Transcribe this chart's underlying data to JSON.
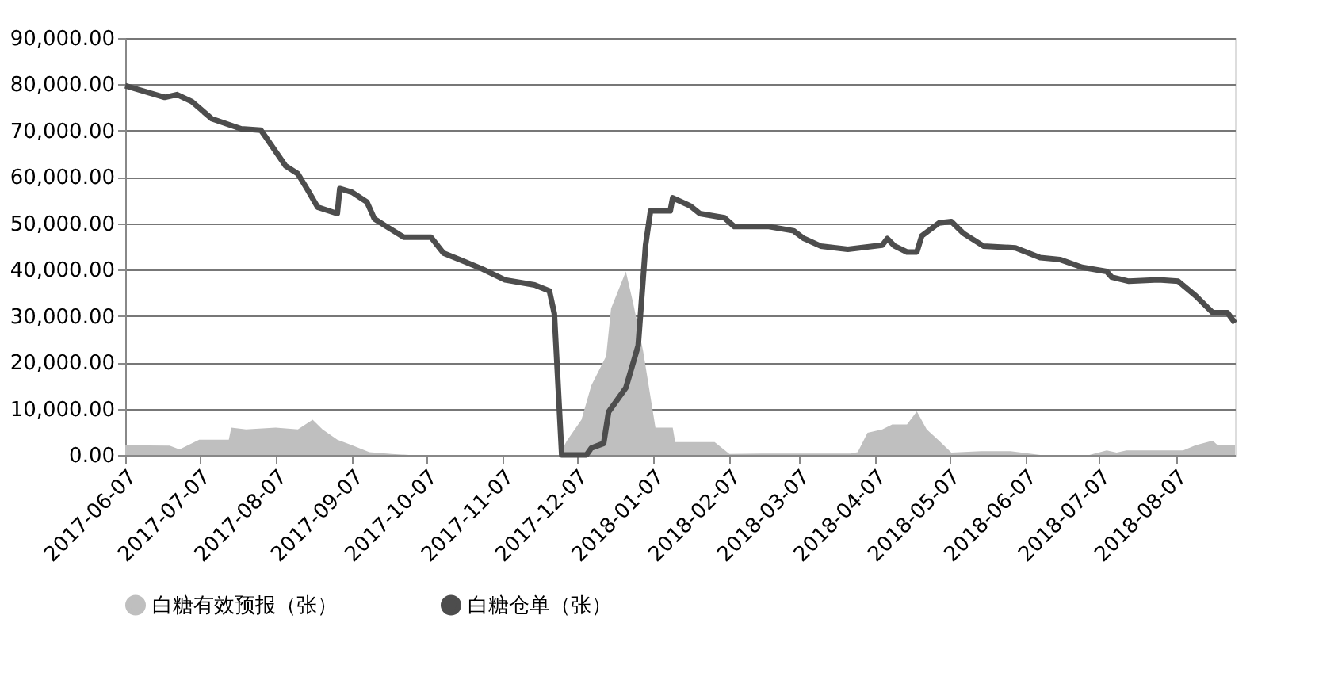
{
  "chart_data": {
    "type": "line",
    "legend": "bottom",
    "grid": "y",
    "line_style": "solid",
    "marker": "none",
    "xlim": [
      "2017-06-07",
      "2018-08-31"
    ],
    "xticks": [
      "2017-06-07",
      "2017-07-07",
      "2017-08-07",
      "2017-09-07",
      "2017-10-07",
      "2017-11-07",
      "2017-12-07",
      "2018-01-07",
      "2018-02-07",
      "2018-03-07",
      "2018-04-07",
      "2018-05-07",
      "2018-06-07",
      "2018-07-07",
      "2018-08-07"
    ],
    "ylim": [
      0,
      90000
    ],
    "yticks": [
      {
        "value": 0,
        "label": "0.00"
      },
      {
        "value": 10000,
        "label": "10,000.00"
      },
      {
        "value": 20000,
        "label": "20,000.00"
      },
      {
        "value": 30000,
        "label": "30,000.00"
      },
      {
        "value": 40000,
        "label": "40,000.00"
      },
      {
        "value": 50000,
        "label": "50,000.00"
      },
      {
        "value": 60000,
        "label": "60,000.00"
      },
      {
        "value": 70000,
        "label": "70,000.00"
      },
      {
        "value": 80000,
        "label": "80,000.00"
      },
      {
        "value": 90000,
        "label": "90,000.00"
      }
    ],
    "series": [
      {
        "name": "白糖有效预报（张）",
        "type": "area",
        "color": "#bfbfbf",
        "x": [
          "2017-06-07",
          "2017-06-25",
          "2017-06-29",
          "2017-07-07",
          "2017-07-19",
          "2017-07-20",
          "2017-07-26",
          "2017-08-07",
          "2017-08-16",
          "2017-08-22",
          "2017-08-26",
          "2017-09-01",
          "2017-09-07",
          "2017-09-14",
          "2017-09-23",
          "2017-09-30",
          "2017-11-30",
          "2017-12-03",
          "2017-12-09",
          "2017-12-13",
          "2017-12-19",
          "2017-12-21",
          "2017-12-27",
          "2017-12-30",
          "2018-01-03",
          "2018-01-08",
          "2018-01-15",
          "2018-01-16",
          "2018-02-01",
          "2018-02-07",
          "2018-02-20",
          "2018-03-01",
          "2018-03-15",
          "2018-03-28",
          "2018-03-31",
          "2018-04-04",
          "2018-04-10",
          "2018-04-14",
          "2018-04-20",
          "2018-04-24",
          "2018-04-28",
          "2018-05-03",
          "2018-05-08",
          "2018-05-20",
          "2018-06-01",
          "2018-06-13",
          "2018-07-03",
          "2018-07-10",
          "2018-07-14",
          "2018-07-18",
          "2018-08-10",
          "2018-08-15",
          "2018-08-22",
          "2018-08-24",
          "2018-08-31"
        ],
        "values": [
          2100,
          2000,
          1200,
          3300,
          3300,
          5900,
          5500,
          5900,
          5500,
          7600,
          5500,
          3300,
          2100,
          600,
          200,
          0,
          0,
          3000,
          7600,
          15000,
          21300,
          31600,
          39600,
          32700,
          22400,
          5900,
          5900,
          2800,
          2800,
          200,
          300,
          300,
          300,
          300,
          600,
          4800,
          5500,
          6600,
          6600,
          9400,
          5500,
          3100,
          500,
          800,
          800,
          0,
          0,
          1000,
          500,
          1000,
          1000,
          2100,
          3100,
          2100,
          2100
        ]
      },
      {
        "name": "白糖仓单（张）",
        "type": "line",
        "color": "#4d4d4d",
        "x": [
          "2017-06-07",
          "2017-06-23",
          "2017-06-28",
          "2017-07-04",
          "2017-07-12",
          "2017-07-24",
          "2017-08-01",
          "2017-08-03",
          "2017-08-11",
          "2017-08-16",
          "2017-08-20",
          "2017-08-24",
          "2017-09-01",
          "2017-09-02",
          "2017-09-07",
          "2017-09-13",
          "2017-09-16",
          "2017-09-21",
          "2017-09-28",
          "2017-10-09",
          "2017-10-14",
          "2017-10-21",
          "2017-10-30",
          "2017-11-08",
          "2017-11-20",
          "2017-11-26",
          "2017-11-28",
          "2017-12-01",
          "2017-12-11",
          "2017-12-13",
          "2017-12-18",
          "2017-12-20",
          "2017-12-27",
          "2018-01-01",
          "2018-01-04",
          "2018-01-06",
          "2018-01-14",
          "2018-01-15",
          "2018-01-22",
          "2018-01-26",
          "2018-02-05",
          "2018-02-09",
          "2018-02-23",
          "2018-03-05",
          "2018-03-09",
          "2018-03-16",
          "2018-03-27",
          "2018-04-10",
          "2018-04-12",
          "2018-04-15",
          "2018-04-20",
          "2018-04-24",
          "2018-04-26",
          "2018-05-03",
          "2018-05-08",
          "2018-05-13",
          "2018-05-21",
          "2018-06-03",
          "2018-06-13",
          "2018-06-21",
          "2018-06-30",
          "2018-07-10",
          "2018-07-12",
          "2018-07-19",
          "2018-07-31",
          "2018-08-08",
          "2018-08-15",
          "2018-08-22",
          "2018-08-28",
          "2018-08-31"
        ],
        "values": [
          79700,
          77200,
          77800,
          76300,
          72600,
          70400,
          70100,
          68600,
          62400,
          60700,
          57200,
          53500,
          52100,
          57500,
          56700,
          54600,
          51000,
          49300,
          47000,
          47000,
          43600,
          42100,
          40100,
          37800,
          36700,
          35400,
          30500,
          0,
          0,
          1500,
          2500,
          9300,
          14500,
          23600,
          45300,
          52700,
          52700,
          55500,
          53800,
          52100,
          51200,
          49300,
          49300,
          48400,
          46800,
          45100,
          44400,
          45300,
          46700,
          45100,
          43800,
          43800,
          47300,
          50100,
          50400,
          47800,
          45100,
          44700,
          42600,
          42200,
          40500,
          39600,
          38400,
          37500,
          37800,
          37500,
          34400,
          30700,
          30700,
          28500
        ]
      }
    ]
  }
}
